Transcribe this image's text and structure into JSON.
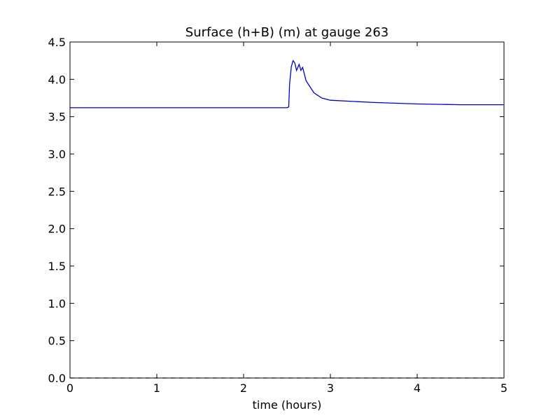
{
  "chart_data": {
    "type": "line",
    "title": "Surface (h+B) (m) at gauge 263",
    "x_label": "time (hours)",
    "series": [
      {
        "color": "#0000cc",
        "line_style": "solid",
        "x": [
          0,
          2.5,
          2.52,
          2.53,
          2.55,
          2.57,
          2.59,
          2.61,
          2.64,
          2.66,
          2.68,
          2.72,
          2.81,
          2.9,
          3.0,
          3.5,
          4.0,
          4.5,
          5.0
        ],
        "values": [
          3.62,
          3.62,
          3.63,
          3.94,
          4.17,
          4.25,
          4.22,
          4.12,
          4.2,
          4.12,
          4.16,
          3.98,
          3.82,
          3.75,
          3.72,
          3.69,
          3.67,
          3.66,
          3.66
        ]
      },
      {
        "color": "#000000",
        "line_style": "dashed",
        "x": [
          0,
          5
        ],
        "values": [
          0,
          0
        ]
      }
    ],
    "xlim": [
      0,
      5
    ],
    "xticks": [
      0,
      1,
      2,
      3,
      4,
      5
    ],
    "ylim": [
      0,
      4.5
    ],
    "yticks": [
      {
        "value": 0,
        "label": "0.0"
      },
      0.5,
      {
        "value": 1,
        "label": "1.0"
      },
      1.5,
      {
        "value": 2,
        "label": "2.0"
      },
      2.5,
      {
        "value": 3,
        "label": "3.0"
      },
      3.5,
      {
        "value": 4,
        "label": "4.0"
      },
      4.5
    ],
    "grid": false
  }
}
